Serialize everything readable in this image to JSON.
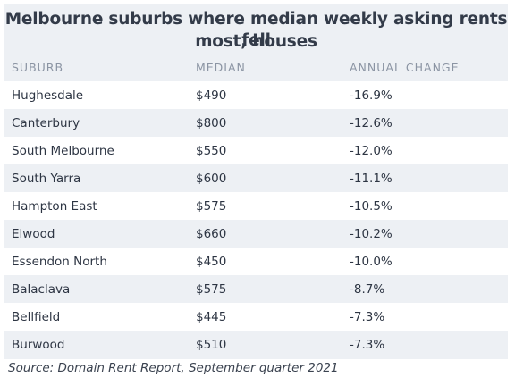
{
  "chart_data": {
    "type": "table",
    "title_line1": "Melbourne suburbs where median weekly asking rents fell",
    "title_line2": "most, houses",
    "columns": [
      "SUBURB",
      "MEDIAN",
      "ANNUAL CHANGE"
    ],
    "rows": [
      [
        "Hughesdale",
        "$490",
        "-16.9%"
      ],
      [
        "Canterbury",
        "$800",
        "-12.6%"
      ],
      [
        "South Melbourne",
        "$550",
        "-12.0%"
      ],
      [
        "South Yarra",
        "$600",
        "-11.1%"
      ],
      [
        "Hampton East",
        "$575",
        "-10.5%"
      ],
      [
        "Elwood",
        "$660",
        "-10.2%"
      ],
      [
        "Essendon North",
        "$450",
        "-10.0%"
      ],
      [
        "Balaclava",
        "$575",
        "-8.7%"
      ],
      [
        "Bellfield",
        "$445",
        "-7.3%"
      ],
      [
        "Burwood",
        "$510",
        "-7.3%"
      ]
    ],
    "source": "Source: Domain Rent Report, September quarter 2021"
  },
  "colors": {
    "panel_background": "#edf0f4",
    "row_highlight": "#ffffff",
    "title": "#333b49",
    "header": "#8b94a3",
    "text": "#2d3543"
  }
}
